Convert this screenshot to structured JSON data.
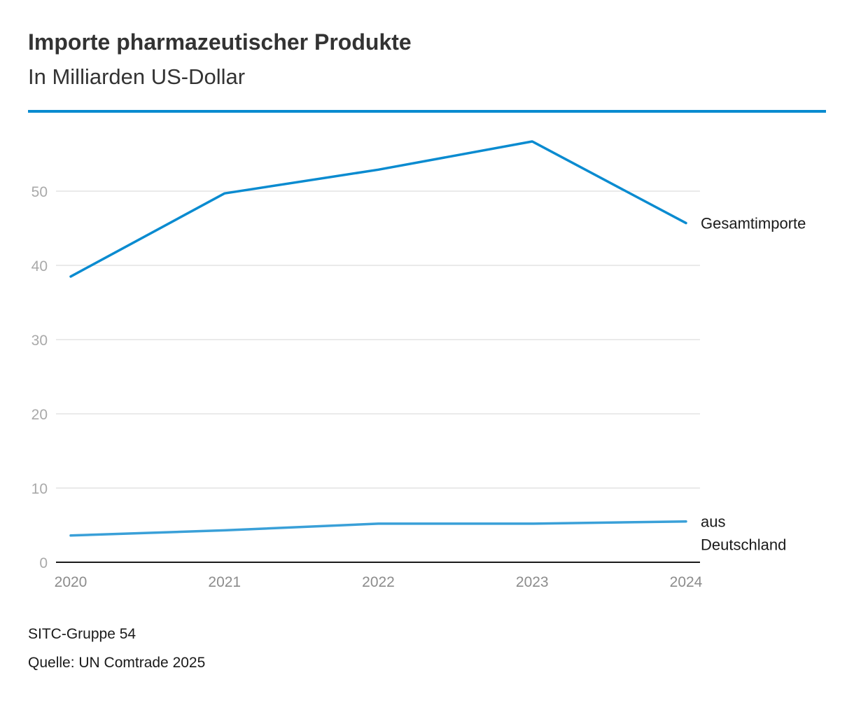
{
  "header": {
    "title": "Importe pharmazeutischer Produkte",
    "subtitle": "In Milliarden US-Dollar"
  },
  "footer": {
    "note": "SITC-Gruppe 54",
    "source": "Quelle: UN Comtrade 2025"
  },
  "chart_data": {
    "type": "line",
    "title": "Importe pharmazeutischer Produkte",
    "subtitle": "In Milliarden US-Dollar",
    "xlabel": "",
    "ylabel": "",
    "x": [
      "2020",
      "2021",
      "2022",
      "2023",
      "2024"
    ],
    "ylim": [
      0,
      60
    ],
    "yticks": [
      0,
      10,
      20,
      30,
      40,
      50
    ],
    "grid": true,
    "legend": "direct labels at line ends",
    "series": [
      {
        "name": "Gesamtimporte",
        "label_lines": [
          "Gesamtimporte"
        ],
        "color": "#0a8bd0",
        "values": [
          38.5,
          49.7,
          52.9,
          56.7,
          45.7
        ]
      },
      {
        "name": "aus Deutschland",
        "label_lines": [
          "aus",
          "Deutschland"
        ],
        "color": "#3aa0d8",
        "values": [
          3.6,
          4.3,
          5.2,
          5.2,
          5.5
        ]
      }
    ]
  }
}
